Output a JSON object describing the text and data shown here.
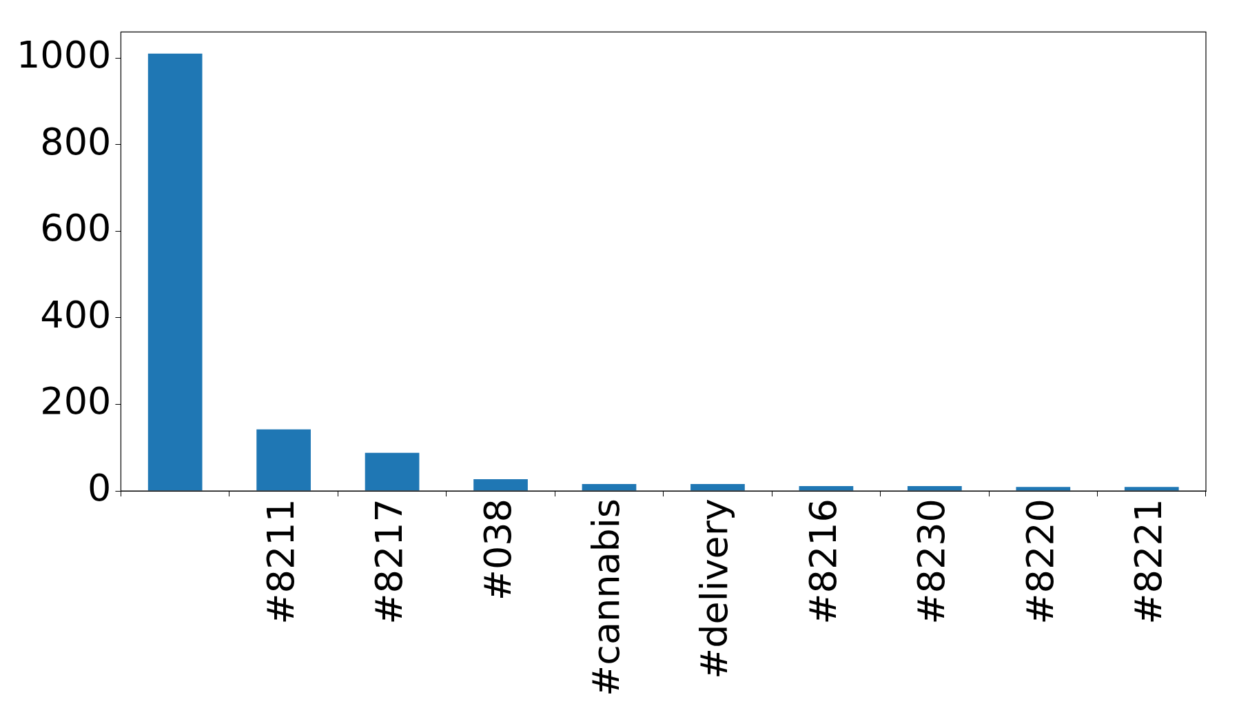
{
  "chart_data": {
    "type": "bar",
    "categories": [
      null,
      "#8211",
      "#8217",
      "#038",
      "#cannabis",
      "#delivery",
      "#8216",
      "#8230",
      "#8220",
      "#8221"
    ],
    "values": [
      1010,
      142,
      88,
      27,
      16,
      16,
      11,
      11,
      9,
      9
    ],
    "color": "#1f77b4",
    "ylim": [
      0,
      1060
    ],
    "yticks": [
      0,
      200,
      400,
      600,
      800,
      1000
    ],
    "grid": false,
    "legend": false
  }
}
